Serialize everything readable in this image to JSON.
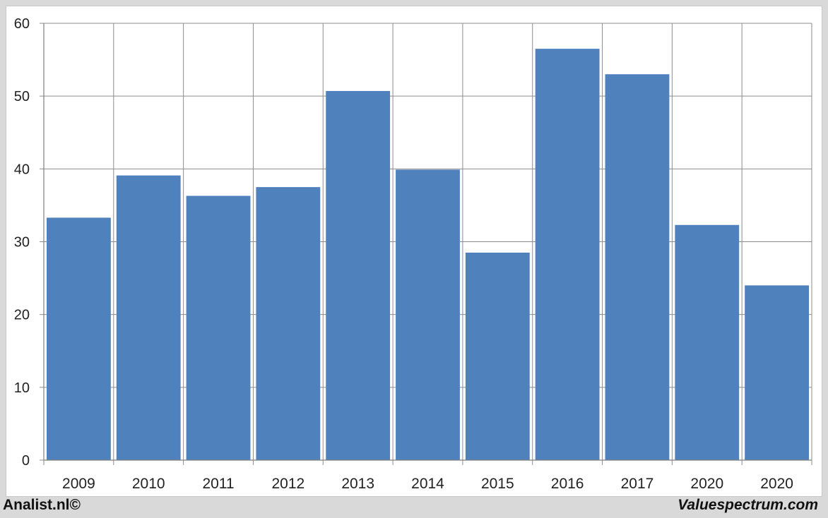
{
  "chart_data": {
    "type": "bar",
    "categories": [
      "2009",
      "2010",
      "2011",
      "2012",
      "2013",
      "2014",
      "2015",
      "2016",
      "2017",
      "2020",
      "2020"
    ],
    "values": [
      33.3,
      39.1,
      36.3,
      37.5,
      50.7,
      39.9,
      28.5,
      56.5,
      53.0,
      32.3,
      24.0
    ],
    "ylim": [
      0,
      60
    ],
    "yticks": [
      0,
      10,
      20,
      30,
      40,
      50,
      60
    ],
    "grid": true,
    "colors": {
      "bar": "#4f81bd",
      "grid": "#8c8c8c"
    }
  },
  "footer": {
    "left_text": "Analist.nl©",
    "right_text": "Valuespectrum.com"
  }
}
